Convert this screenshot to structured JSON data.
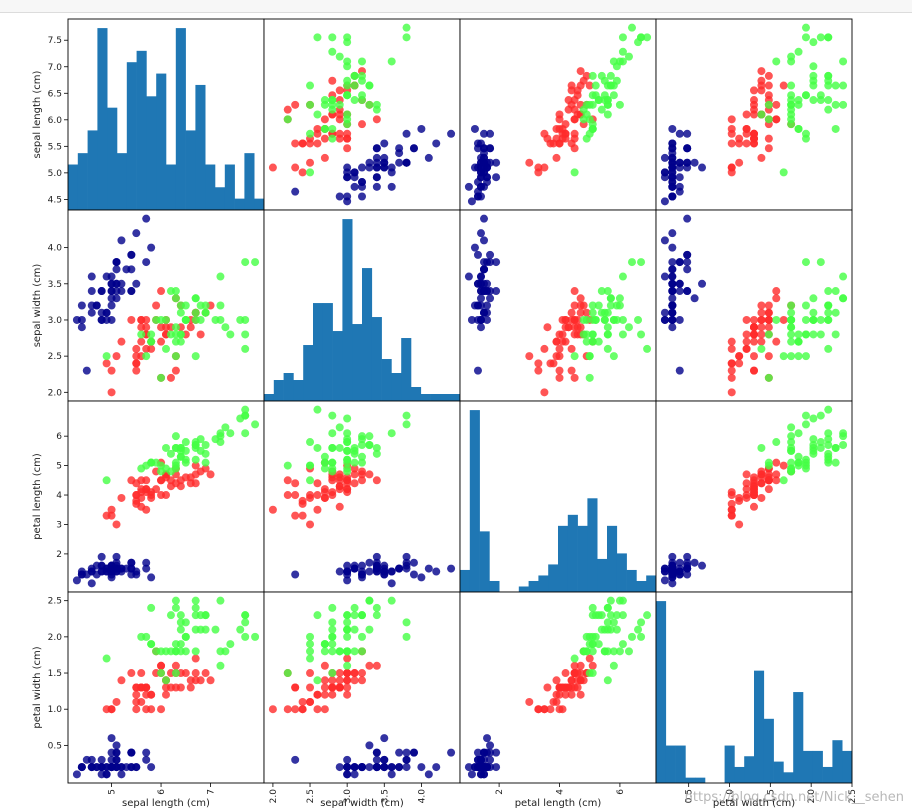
{
  "watermark": "https://blog.csdn.net/Nick__sehen",
  "chart_data": {
    "type": "scatter",
    "subtype": "scatter_matrix",
    "variables": [
      "sepal length (cm)",
      "sepal width (cm)",
      "petal length (cm)",
      "petal width (cm)"
    ],
    "ranges": [
      [
        4.3,
        7.9
      ],
      [
        2.0,
        4.4
      ],
      [
        1.0,
        6.9
      ],
      [
        0.1,
        2.5
      ]
    ],
    "ticks": [
      {
        "values": [
          4.5,
          5.0,
          5.5,
          6.0,
          6.5,
          7.0,
          7.5
        ],
        "labels": [
          "4.5",
          "5.0",
          "5.5",
          "6.0",
          "6.5",
          "7.0",
          "7.5"
        ]
      },
      {
        "values": [
          2.0,
          2.5,
          3.0,
          3.5,
          4.0
        ],
        "labels": [
          "2.0",
          "2.5",
          "3.0",
          "3.5",
          "4.0"
        ]
      },
      {
        "values": [
          2,
          3,
          4,
          5,
          6
        ],
        "labels": [
          "2",
          "3",
          "4",
          "5",
          "6"
        ]
      },
      {
        "values": [
          0.5,
          1.0,
          1.5,
          2.0,
          2.5
        ],
        "labels": [
          "0.5",
          "1.0",
          "1.5",
          "2.0",
          "2.5"
        ]
      }
    ],
    "xticks": [
      {
        "values": [
          5,
          6,
          7
        ],
        "labels": [
          "5",
          "6",
          "7"
        ]
      },
      {
        "values": [
          2.0,
          2.5,
          3.0,
          3.5,
          4.0
        ],
        "labels": [
          "2.0",
          "2.5",
          "3.0",
          "3.5",
          "4.0"
        ]
      },
      {
        "values": [
          2,
          4,
          6
        ],
        "labels": [
          "2",
          "4",
          "6"
        ]
      },
      {
        "values": [
          0.5,
          1.0,
          1.5,
          2.0,
          2.5
        ],
        "labels": [
          "0.5",
          "1.0",
          "1.5",
          "2.0",
          "2.5"
        ]
      }
    ],
    "diagonal": "hist",
    "bins": 20,
    "hist_color": "#1f77b4",
    "class_colors": [
      "#00008b",
      "#ff2a2a",
      "#44ff44"
    ],
    "point_opacity": 0.8,
    "grid": false,
    "data": [
      [
        5.1,
        3.5,
        1.4,
        0.2,
        0
      ],
      [
        4.9,
        3.0,
        1.4,
        0.2,
        0
      ],
      [
        4.7,
        3.2,
        1.3,
        0.2,
        0
      ],
      [
        4.6,
        3.1,
        1.5,
        0.2,
        0
      ],
      [
        5.0,
        3.6,
        1.4,
        0.2,
        0
      ],
      [
        5.4,
        3.9,
        1.7,
        0.4,
        0
      ],
      [
        4.6,
        3.4,
        1.4,
        0.3,
        0
      ],
      [
        5.0,
        3.4,
        1.5,
        0.2,
        0
      ],
      [
        4.4,
        2.9,
        1.4,
        0.2,
        0
      ],
      [
        4.9,
        3.1,
        1.5,
        0.1,
        0
      ],
      [
        5.4,
        3.7,
        1.5,
        0.2,
        0
      ],
      [
        4.8,
        3.4,
        1.6,
        0.2,
        0
      ],
      [
        4.8,
        3.0,
        1.4,
        0.1,
        0
      ],
      [
        4.3,
        3.0,
        1.1,
        0.1,
        0
      ],
      [
        5.8,
        4.0,
        1.2,
        0.2,
        0
      ],
      [
        5.7,
        4.4,
        1.5,
        0.4,
        0
      ],
      [
        5.4,
        3.9,
        1.3,
        0.4,
        0
      ],
      [
        5.1,
        3.5,
        1.4,
        0.3,
        0
      ],
      [
        5.7,
        3.8,
        1.7,
        0.3,
        0
      ],
      [
        5.1,
        3.8,
        1.5,
        0.3,
        0
      ],
      [
        5.4,
        3.4,
        1.7,
        0.2,
        0
      ],
      [
        5.1,
        3.7,
        1.5,
        0.4,
        0
      ],
      [
        4.6,
        3.6,
        1.0,
        0.2,
        0
      ],
      [
        5.1,
        3.3,
        1.7,
        0.5,
        0
      ],
      [
        4.8,
        3.4,
        1.9,
        0.2,
        0
      ],
      [
        5.0,
        3.0,
        1.6,
        0.2,
        0
      ],
      [
        5.0,
        3.4,
        1.6,
        0.4,
        0
      ],
      [
        5.2,
        3.5,
        1.5,
        0.2,
        0
      ],
      [
        5.2,
        3.4,
        1.4,
        0.2,
        0
      ],
      [
        4.7,
        3.2,
        1.6,
        0.2,
        0
      ],
      [
        4.8,
        3.1,
        1.6,
        0.2,
        0
      ],
      [
        5.4,
        3.4,
        1.5,
        0.4,
        0
      ],
      [
        5.2,
        4.1,
        1.5,
        0.1,
        0
      ],
      [
        5.5,
        4.2,
        1.4,
        0.2,
        0
      ],
      [
        4.9,
        3.1,
        1.5,
        0.2,
        0
      ],
      [
        5.0,
        3.2,
        1.2,
        0.2,
        0
      ],
      [
        5.5,
        3.5,
        1.3,
        0.2,
        0
      ],
      [
        4.9,
        3.6,
        1.4,
        0.1,
        0
      ],
      [
        4.4,
        3.0,
        1.3,
        0.2,
        0
      ],
      [
        5.1,
        3.4,
        1.5,
        0.2,
        0
      ],
      [
        5.0,
        3.5,
        1.3,
        0.3,
        0
      ],
      [
        4.5,
        2.3,
        1.3,
        0.3,
        0
      ],
      [
        4.4,
        3.2,
        1.3,
        0.2,
        0
      ],
      [
        5.0,
        3.5,
        1.6,
        0.6,
        0
      ],
      [
        5.1,
        3.8,
        1.9,
        0.4,
        0
      ],
      [
        4.8,
        3.0,
        1.4,
        0.3,
        0
      ],
      [
        5.1,
        3.8,
        1.6,
        0.2,
        0
      ],
      [
        4.6,
        3.2,
        1.4,
        0.2,
        0
      ],
      [
        5.3,
        3.7,
        1.5,
        0.2,
        0
      ],
      [
        5.0,
        3.3,
        1.4,
        0.2,
        0
      ],
      [
        7.0,
        3.2,
        4.7,
        1.4,
        1
      ],
      [
        6.4,
        3.2,
        4.5,
        1.5,
        1
      ],
      [
        6.9,
        3.1,
        4.9,
        1.5,
        1
      ],
      [
        5.5,
        2.3,
        4.0,
        1.3,
        1
      ],
      [
        6.5,
        2.8,
        4.6,
        1.5,
        1
      ],
      [
        5.7,
        2.8,
        4.5,
        1.3,
        1
      ],
      [
        6.3,
        3.3,
        4.7,
        1.6,
        1
      ],
      [
        4.9,
        2.4,
        3.3,
        1.0,
        1
      ],
      [
        6.6,
        2.9,
        4.6,
        1.3,
        1
      ],
      [
        5.2,
        2.7,
        3.9,
        1.4,
        1
      ],
      [
        5.0,
        2.0,
        3.5,
        1.0,
        1
      ],
      [
        5.9,
        3.0,
        4.2,
        1.5,
        1
      ],
      [
        6.0,
        2.2,
        4.0,
        1.0,
        1
      ],
      [
        6.1,
        2.9,
        4.7,
        1.4,
        1
      ],
      [
        5.6,
        2.9,
        3.6,
        1.3,
        1
      ],
      [
        6.7,
        3.1,
        4.4,
        1.4,
        1
      ],
      [
        5.6,
        3.0,
        4.5,
        1.5,
        1
      ],
      [
        5.8,
        2.7,
        4.1,
        1.0,
        1
      ],
      [
        6.2,
        2.2,
        4.5,
        1.5,
        1
      ],
      [
        5.6,
        2.5,
        3.9,
        1.1,
        1
      ],
      [
        5.9,
        3.2,
        4.8,
        1.8,
        1
      ],
      [
        6.1,
        2.8,
        4.0,
        1.3,
        1
      ],
      [
        6.3,
        2.5,
        4.9,
        1.5,
        1
      ],
      [
        6.1,
        2.8,
        4.7,
        1.2,
        1
      ],
      [
        6.4,
        2.9,
        4.3,
        1.3,
        1
      ],
      [
        6.6,
        3.0,
        4.4,
        1.4,
        1
      ],
      [
        6.8,
        2.8,
        4.8,
        1.4,
        1
      ],
      [
        6.7,
        3.0,
        5.0,
        1.7,
        1
      ],
      [
        6.0,
        2.9,
        4.5,
        1.5,
        1
      ],
      [
        5.7,
        2.6,
        3.5,
        1.0,
        1
      ],
      [
        5.5,
        2.4,
        3.8,
        1.1,
        1
      ],
      [
        5.5,
        2.4,
        3.7,
        1.0,
        1
      ],
      [
        5.8,
        2.7,
        3.9,
        1.2,
        1
      ],
      [
        6.0,
        2.7,
        5.1,
        1.6,
        1
      ],
      [
        5.4,
        3.0,
        4.5,
        1.5,
        1
      ],
      [
        6.0,
        3.4,
        4.5,
        1.6,
        1
      ],
      [
        6.7,
        3.1,
        4.7,
        1.5,
        1
      ],
      [
        6.3,
        2.3,
        4.4,
        1.3,
        1
      ],
      [
        5.6,
        3.0,
        4.1,
        1.3,
        1
      ],
      [
        5.5,
        2.5,
        4.0,
        1.3,
        1
      ],
      [
        5.5,
        2.6,
        4.4,
        1.2,
        1
      ],
      [
        6.1,
        3.0,
        4.6,
        1.4,
        1
      ],
      [
        5.8,
        2.6,
        4.0,
        1.2,
        1
      ],
      [
        5.0,
        2.3,
        3.3,
        1.0,
        1
      ],
      [
        5.6,
        2.7,
        4.2,
        1.3,
        1
      ],
      [
        5.7,
        3.0,
        4.2,
        1.2,
        1
      ],
      [
        5.7,
        2.9,
        4.2,
        1.3,
        1
      ],
      [
        6.2,
        2.9,
        4.3,
        1.3,
        1
      ],
      [
        5.1,
        2.5,
        3.0,
        1.1,
        1
      ],
      [
        5.7,
        2.8,
        4.1,
        1.3,
        1
      ],
      [
        6.3,
        3.3,
        6.0,
        2.5,
        2
      ],
      [
        5.8,
        2.7,
        5.1,
        1.9,
        2
      ],
      [
        7.1,
        3.0,
        5.9,
        2.1,
        2
      ],
      [
        6.3,
        2.9,
        5.6,
        1.8,
        2
      ],
      [
        6.5,
        3.0,
        5.8,
        2.2,
        2
      ],
      [
        7.6,
        3.0,
        6.6,
        2.1,
        2
      ],
      [
        4.9,
        2.5,
        4.5,
        1.7,
        2
      ],
      [
        7.3,
        2.9,
        6.3,
        1.8,
        2
      ],
      [
        6.7,
        2.5,
        5.8,
        1.8,
        2
      ],
      [
        7.2,
        3.6,
        6.1,
        2.5,
        2
      ],
      [
        6.5,
        3.2,
        5.1,
        2.0,
        2
      ],
      [
        6.4,
        2.7,
        5.3,
        1.9,
        2
      ],
      [
        6.8,
        3.0,
        5.5,
        2.1,
        2
      ],
      [
        5.7,
        2.5,
        5.0,
        2.0,
        2
      ],
      [
        5.8,
        2.8,
        5.1,
        2.4,
        2
      ],
      [
        6.4,
        3.2,
        5.3,
        2.3,
        2
      ],
      [
        6.5,
        3.0,
        5.5,
        1.8,
        2
      ],
      [
        7.7,
        3.8,
        6.7,
        2.2,
        2
      ],
      [
        7.7,
        2.6,
        6.9,
        2.3,
        2
      ],
      [
        6.0,
        2.2,
        5.0,
        1.5,
        2
      ],
      [
        6.9,
        3.2,
        5.7,
        2.3,
        2
      ],
      [
        5.6,
        2.8,
        4.9,
        2.0,
        2
      ],
      [
        7.7,
        2.8,
        6.7,
        2.0,
        2
      ],
      [
        6.3,
        2.7,
        4.9,
        1.8,
        2
      ],
      [
        6.7,
        3.3,
        5.7,
        2.1,
        2
      ],
      [
        7.2,
        3.2,
        6.0,
        1.8,
        2
      ],
      [
        6.2,
        2.8,
        4.8,
        1.8,
        2
      ],
      [
        6.1,
        3.0,
        4.9,
        1.8,
        2
      ],
      [
        6.4,
        2.8,
        5.6,
        2.1,
        2
      ],
      [
        7.2,
        3.0,
        5.8,
        1.6,
        2
      ],
      [
        7.4,
        2.8,
        6.1,
        1.9,
        2
      ],
      [
        7.9,
        3.8,
        6.4,
        2.0,
        2
      ],
      [
        6.4,
        2.8,
        5.6,
        2.2,
        2
      ],
      [
        6.3,
        2.8,
        5.1,
        1.5,
        2
      ],
      [
        6.1,
        2.6,
        5.6,
        1.4,
        2
      ],
      [
        7.7,
        3.0,
        6.1,
        2.3,
        2
      ],
      [
        6.3,
        3.4,
        5.6,
        2.4,
        2
      ],
      [
        6.4,
        3.1,
        5.5,
        1.8,
        2
      ],
      [
        6.0,
        3.0,
        4.8,
        1.8,
        2
      ],
      [
        6.9,
        3.1,
        5.4,
        2.1,
        2
      ],
      [
        6.7,
        3.1,
        5.6,
        2.4,
        2
      ],
      [
        6.9,
        3.1,
        5.1,
        2.3,
        2
      ],
      [
        5.8,
        2.7,
        5.1,
        1.9,
        2
      ],
      [
        6.8,
        3.2,
        5.9,
        2.3,
        2
      ],
      [
        6.7,
        3.3,
        5.7,
        2.5,
        2
      ],
      [
        6.7,
        3.0,
        5.2,
        2.3,
        2
      ],
      [
        6.3,
        2.5,
        5.0,
        1.9,
        2
      ],
      [
        6.5,
        3.0,
        5.2,
        2.0,
        2
      ],
      [
        6.2,
        3.4,
        5.4,
        2.3,
        2
      ],
      [
        5.9,
        3.0,
        5.1,
        1.8,
        2
      ]
    ]
  }
}
